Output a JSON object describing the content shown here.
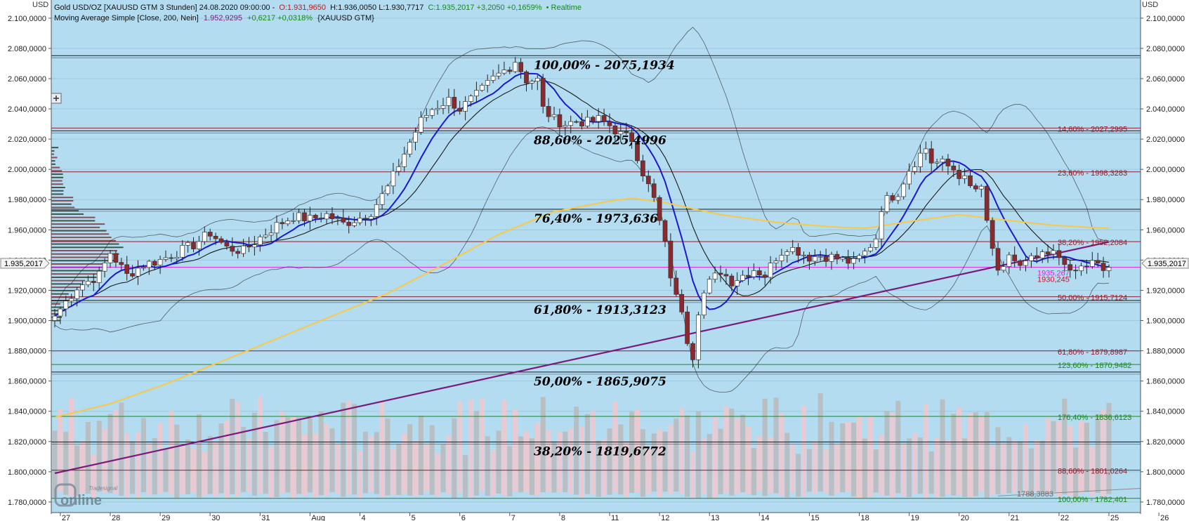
{
  "header": {
    "line1_title": "Gold USD/OZ [XAUUSD GTM 3 Stunden] 24.08.2020 09:00:00 -",
    "line1_open": "O:1.931,9650",
    "line1_hlc": "H:1.936,0050 L:1.930,7717",
    "line1_close": "C:1.935,2017 +3,2050 +0,1659%",
    "line1_realtime": "• Realtime",
    "line2_prefix": "Moving Average Simple [Close, 200, Nein]",
    "line2_value": "1.952,9295",
    "line2_change": "+0,6217 +0,0318%",
    "line2_suffix": "{XAUUSD GTM}",
    "currency": "USD"
  },
  "logo": {
    "small": "Tradesignal",
    "big": "online"
  },
  "price_badge": "1.935,2017",
  "colors": {
    "background": "#b3dcf1",
    "bull_candle": "#ffffff",
    "bear_candle": "#8b2a2e",
    "ma_blue": "#1a1acc",
    "ma_black": "#1a1a1a",
    "ma_200": "#f7c948",
    "trend_purple": "#7a1a7a",
    "fib_red": "#8b2030",
    "fib_green": "#1a8a1a"
  },
  "chart_data": {
    "type": "candlestick",
    "instrument": "Gold USD/OZ",
    "ylim": [
      1773,
      2112
    ],
    "yticks": [
      2100,
      2080,
      2060,
      2040,
      2020,
      2000,
      1980,
      1960,
      1940,
      1920,
      1900,
      1880,
      1860,
      1840,
      1820,
      1800,
      1780
    ],
    "ytick_labels": [
      "2.100,0000",
      "2.080,0000",
      "2.060,0000",
      "2.040,0000",
      "2.020,0000",
      "2.000,0000",
      "1.980,0000",
      "1.960,0000",
      "1.940,0000",
      "1.920,0000",
      "1.900,0000",
      "1.880,0000",
      "1.860,0000",
      "1.840,0000",
      "1.820,0000",
      "1.800,0000",
      "1.780,0000"
    ],
    "xlim": [
      0,
      220
    ],
    "xticks": [
      {
        "x": 1,
        "label": "27"
      },
      {
        "x": 10,
        "label": "28"
      },
      {
        "x": 19,
        "label": "29"
      },
      {
        "x": 28,
        "label": "30"
      },
      {
        "x": 37,
        "label": "31"
      },
      {
        "x": 46,
        "label": "Aug"
      },
      {
        "x": 55,
        "label": "4"
      },
      {
        "x": 64,
        "label": "5"
      },
      {
        "x": 73,
        "label": "6"
      },
      {
        "x": 82,
        "label": "7"
      },
      {
        "x": 91,
        "label": "8"
      },
      {
        "x": 100,
        "label": "11"
      },
      {
        "x": 109,
        "label": "12"
      },
      {
        "x": 118,
        "label": "13"
      },
      {
        "x": 127,
        "label": "14"
      },
      {
        "x": 136,
        "label": "15"
      },
      {
        "x": 145,
        "label": "18"
      },
      {
        "x": 154,
        "label": "19"
      },
      {
        "x": 163,
        "label": "20"
      },
      {
        "x": 172,
        "label": "21"
      },
      {
        "x": 181,
        "label": "22"
      },
      {
        "x": 190,
        "label": "25"
      },
      {
        "x": 199,
        "label": "26"
      }
    ],
    "last_price": 1935.2017,
    "anchors": [
      [
        0,
        1903
      ],
      [
        4,
        1922
      ],
      [
        8,
        1930
      ],
      [
        10,
        1945
      ],
      [
        13,
        1930
      ],
      [
        16,
        1937
      ],
      [
        19,
        1940
      ],
      [
        22,
        1945
      ],
      [
        25,
        1950
      ],
      [
        28,
        1958
      ],
      [
        31,
        1948
      ],
      [
        34,
        1946
      ],
      [
        37,
        1955
      ],
      [
        40,
        1963
      ],
      [
        43,
        1969
      ],
      [
        46,
        1967
      ],
      [
        49,
        1970
      ],
      [
        52,
        1964
      ],
      [
        55,
        1968
      ],
      [
        57,
        1972
      ],
      [
        60,
        1988
      ],
      [
        62,
        2003
      ],
      [
        64,
        2018
      ],
      [
        66,
        2032
      ],
      [
        68,
        2040
      ],
      [
        71,
        2046
      ],
      [
        73,
        2040
      ],
      [
        76,
        2049
      ],
      [
        79,
        2060
      ],
      [
        82,
        2068
      ],
      [
        83,
        2072
      ],
      [
        85,
        2059
      ],
      [
        87,
        2059
      ],
      [
        88,
        2040
      ],
      [
        90,
        2033
      ],
      [
        92,
        2030
      ],
      [
        94,
        2032
      ],
      [
        96,
        2031
      ],
      [
        98,
        2033
      ],
      [
        100,
        2029
      ],
      [
        102,
        2023
      ],
      [
        104,
        2020
      ],
      [
        106,
        1998
      ],
      [
        108,
        1980
      ],
      [
        110,
        1950
      ],
      [
        111,
        1930
      ],
      [
        112,
        1915
      ],
      [
        113,
        1908
      ],
      [
        114,
        1888
      ],
      [
        115,
        1877
      ],
      [
        116,
        1907
      ],
      [
        117,
        1918
      ],
      [
        118,
        1925
      ],
      [
        120,
        1933
      ],
      [
        122,
        1926
      ],
      [
        124,
        1930
      ],
      [
        126,
        1934
      ],
      [
        128,
        1930
      ],
      [
        130,
        1942
      ],
      [
        132,
        1949
      ],
      [
        134,
        1946
      ],
      [
        136,
        1942
      ],
      [
        138,
        1943
      ],
      [
        140,
        1942
      ],
      [
        142,
        1940
      ],
      [
        144,
        1938
      ],
      [
        146,
        1945
      ],
      [
        148,
        1955
      ],
      [
        149,
        1975
      ],
      [
        150,
        1980
      ],
      [
        152,
        1985
      ],
      [
        154,
        2000
      ],
      [
        156,
        2010
      ],
      [
        157,
        2014
      ],
      [
        158,
        2005
      ],
      [
        160,
        2004
      ],
      [
        162,
        2000
      ],
      [
        164,
        1993
      ],
      [
        165,
        1988
      ],
      [
        167,
        1986
      ],
      [
        168,
        1965
      ],
      [
        169,
        1948
      ],
      [
        170,
        1930
      ],
      [
        171,
        1933
      ],
      [
        172,
        1944
      ],
      [
        174,
        1935
      ],
      [
        176,
        1940
      ],
      [
        178,
        1942
      ],
      [
        180,
        1944
      ],
      [
        182,
        1940
      ],
      [
        183,
        1930
      ],
      [
        185,
        1935
      ],
      [
        187,
        1938
      ],
      [
        188,
        1936
      ],
      [
        189,
        1933
      ],
      [
        190,
        1935.2
      ]
    ],
    "fibonacci_left": [
      {
        "level": "100,00%",
        "price": 2075.1934,
        "label": "100,00% - 2075,1934"
      },
      {
        "level": "88,60%",
        "price": 2025.4996,
        "label": "88,60% - 2025,4996"
      },
      {
        "level": "76,40%",
        "price": 1973.636,
        "label": "76,40% - 1973,636"
      },
      {
        "level": "61,80%",
        "price": 1913.3123,
        "label": "61,80% - 1913,3123"
      },
      {
        "level": "50,00%",
        "price": 1865.9075,
        "label": "50,00% - 1865,9075"
      },
      {
        "level": "38,20%",
        "price": 1819.6772,
        "label": "38,20% - 1819,6772"
      }
    ],
    "fibonacci_right": [
      {
        "price": 2027.2995,
        "label": "14,60% - 2027,2995",
        "color": "red"
      },
      {
        "price": 1998.3283,
        "label": "23,60% - 1998,3283",
        "color": "red"
      },
      {
        "price": 1952.2084,
        "label": "38,20% - 1952,2084",
        "color": "red"
      },
      {
        "price": 1915.7124,
        "label": "50,00% - 1915,7124",
        "color": "red"
      },
      {
        "price": 1879.8987,
        "label": "61,80% - 1879,8987",
        "color": "red"
      },
      {
        "price": 1870.9482,
        "label": "123,60% - 1870,9482",
        "color": "green"
      },
      {
        "price": 1836.6123,
        "label": "176,40% - 1836,6123",
        "color": "green"
      },
      {
        "price": 1801.0264,
        "label": "88,60% - 1801,0264",
        "color": "red"
      },
      {
        "price": 1782.401,
        "label": "100,00% - 1782,401",
        "color": "green"
      }
    ],
    "right_markers": [
      {
        "price": 1935.267,
        "label": "1935,267",
        "color": "magenta"
      },
      {
        "price": 1930.245,
        "label": "1930,245",
        "color": "red"
      },
      {
        "price": 1788.3883,
        "label": "1788,3883",
        "color": "gray"
      }
    ],
    "trendline_purple": {
      "from": [
        0,
        1799
      ],
      "to": [
        190,
        1952
      ]
    },
    "trendline_gray": {
      "from": [
        170,
        1784
      ],
      "to": [
        220,
        1789
      ]
    },
    "grid": true,
    "indicators": [
      "Moving Average Simple [Close, 200]",
      "moving average (blue)",
      "moving average (black)",
      "Bollinger Bands",
      "Volume",
      "Volume Profile"
    ]
  }
}
